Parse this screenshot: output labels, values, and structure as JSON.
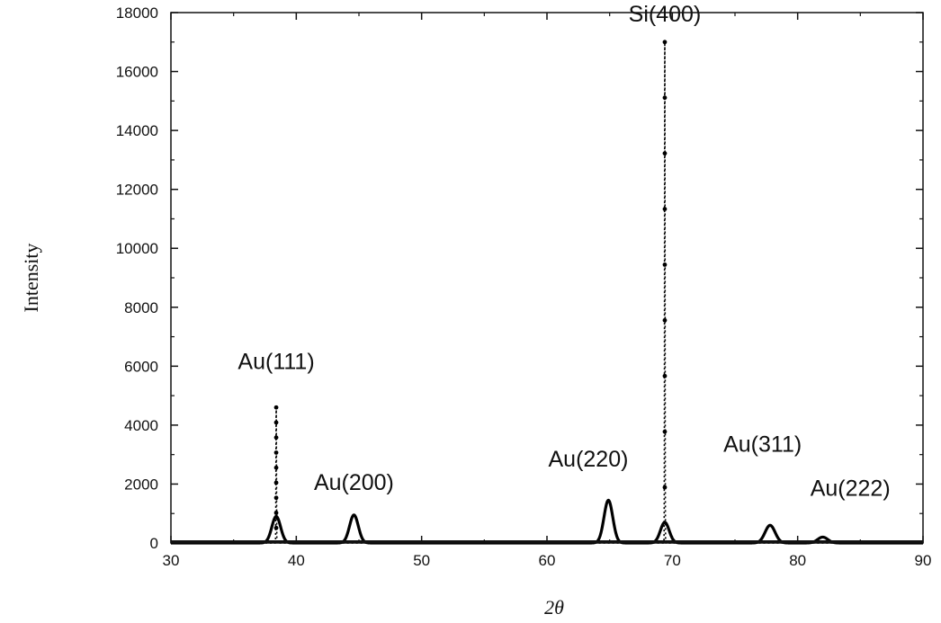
{
  "chart_data": {
    "type": "line",
    "title": "",
    "xlabel": "2θ",
    "ylabel": "Intensity",
    "xlim": [
      30,
      90
    ],
    "ylim": [
      0,
      18000
    ],
    "x_ticks": [
      30,
      40,
      50,
      60,
      70,
      80,
      90
    ],
    "x_tick_labels": [
      "30",
      "40",
      "50",
      "60",
      "70",
      "80",
      "90"
    ],
    "y_ticks": [
      0,
      2000,
      4000,
      6000,
      8000,
      10000,
      12000,
      14000,
      16000,
      18000
    ],
    "y_tick_labels": [
      "0",
      "2000",
      "4000",
      "6000",
      "8000",
      "10000",
      "12000",
      "14000",
      "16000",
      "18000"
    ],
    "grid": false,
    "series": [
      {
        "name": "",
        "style": "solid",
        "color": "#000000",
        "peaks": [
          {
            "x": 38.4,
            "y": 900,
            "width": 0.35
          },
          {
            "x": 44.6,
            "y": 950,
            "width": 0.35
          },
          {
            "x": 64.9,
            "y": 1450,
            "width": 0.35
          },
          {
            "x": 69.4,
            "y": 700,
            "width": 0.35
          },
          {
            "x": 77.8,
            "y": 600,
            "width": 0.4
          },
          {
            "x": 82.0,
            "y": 200,
            "width": 0.4
          }
        ]
      },
      {
        "name": "",
        "style": "dotted",
        "color": "#000000",
        "peaks": [
          {
            "x": 38.4,
            "y": 4600,
            "width": 0.02
          },
          {
            "x": 69.4,
            "y": 17000,
            "width": 0.02
          }
        ]
      }
    ],
    "annotations": [
      {
        "text": "Au(111)",
        "x": 38.4,
        "y": 5900
      },
      {
        "text": "Au(200)",
        "x": 44.6,
        "y": 1800
      },
      {
        "text": "Au(220)",
        "x": 63.3,
        "y": 2600
      },
      {
        "text": "Si(400)",
        "x": 69.4,
        "y": 17700
      },
      {
        "text": "Au(311)",
        "x": 77.2,
        "y": 3100
      },
      {
        "text": "Au(222)",
        "x": 84.2,
        "y": 1600
      }
    ]
  }
}
